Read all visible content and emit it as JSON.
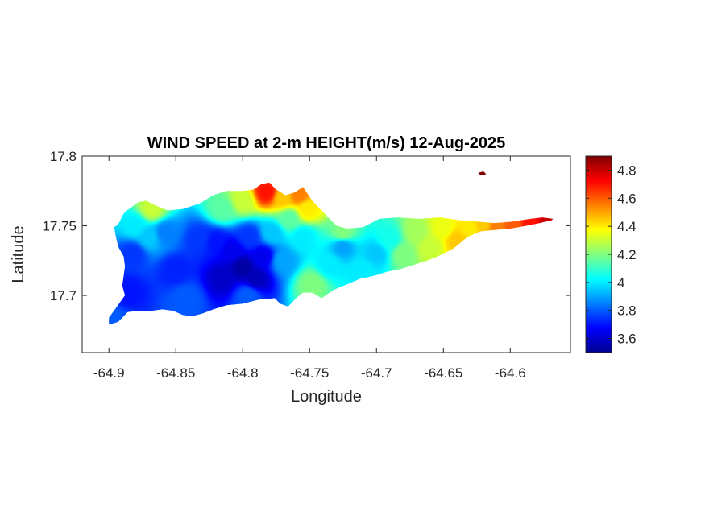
{
  "chart_data": {
    "type": "heatmap",
    "title": "WIND SPEED at 2-m HEIGHT(m/s) 12-Aug-2025",
    "xlabel": "Longitude",
    "ylabel": "Latitude",
    "xlim": [
      -64.92,
      -64.555
    ],
    "ylim": [
      17.659,
      17.8
    ],
    "x_ticks": [
      {
        "value": -64.9,
        "label": "-64.9"
      },
      {
        "value": -64.85,
        "label": "-64.85"
      },
      {
        "value": -64.8,
        "label": "-64.8"
      },
      {
        "value": -64.75,
        "label": "-64.75"
      },
      {
        "value": -64.7,
        "label": "-64.7"
      },
      {
        "value": -64.65,
        "label": "-64.65"
      },
      {
        "value": -64.6,
        "label": "-64.6"
      }
    ],
    "y_ticks": [
      {
        "value": 17.7,
        "label": "17.7"
      },
      {
        "value": 17.75,
        "label": "17.75"
      },
      {
        "value": 17.8,
        "label": "17.8"
      }
    ],
    "colorbar": {
      "colormap": "jet",
      "range": [
        3.5,
        4.9
      ],
      "ticks": [
        {
          "value": 3.6,
          "label": "3.6"
        },
        {
          "value": 3.8,
          "label": "3.8"
        },
        {
          "value": 4.0,
          "label": "4"
        },
        {
          "value": 4.2,
          "label": "4.2"
        },
        {
          "value": 4.4,
          "label": "4.4"
        },
        {
          "value": 4.6,
          "label": "4.6"
        },
        {
          "value": 4.8,
          "label": "4.8"
        }
      ]
    },
    "island_outline": [
      [
        -64.9,
        17.679
      ],
      [
        -64.893,
        17.681
      ],
      [
        -64.886,
        17.688
      ],
      [
        -64.878,
        17.689
      ],
      [
        -64.868,
        17.689
      ],
      [
        -64.86,
        17.69
      ],
      [
        -64.852,
        17.689
      ],
      [
        -64.845,
        17.686
      ],
      [
        -64.838,
        17.685
      ],
      [
        -64.83,
        17.687
      ],
      [
        -64.822,
        17.69
      ],
      [
        -64.812,
        17.693
      ],
      [
        -64.8,
        17.694
      ],
      [
        -64.788,
        17.697
      ],
      [
        -64.776,
        17.698
      ],
      [
        -64.772,
        17.694
      ],
      [
        -64.766,
        17.692
      ],
      [
        -64.76,
        17.698
      ],
      [
        -64.755,
        17.702
      ],
      [
        -64.748,
        17.702
      ],
      [
        -64.741,
        17.698
      ],
      [
        -64.732,
        17.704
      ],
      [
        -64.722,
        17.708
      ],
      [
        -64.712,
        17.712
      ],
      [
        -64.702,
        17.714
      ],
      [
        -64.692,
        17.717
      ],
      [
        -64.682,
        17.719
      ],
      [
        -64.672,
        17.722
      ],
      [
        -64.662,
        17.725
      ],
      [
        -64.652,
        17.729
      ],
      [
        -64.642,
        17.734
      ],
      [
        -64.632,
        17.742
      ],
      [
        -64.622,
        17.746
      ],
      [
        -64.612,
        17.747
      ],
      [
        -64.6,
        17.748
      ],
      [
        -64.588,
        17.75
      ],
      [
        -64.578,
        17.752
      ],
      [
        -64.569,
        17.754
      ],
      [
        -64.568,
        17.755
      ],
      [
        -64.576,
        17.756
      ],
      [
        -64.585,
        17.755
      ],
      [
        -64.598,
        17.753
      ],
      [
        -64.612,
        17.752
      ],
      [
        -64.625,
        17.753
      ],
      [
        -64.638,
        17.754
      ],
      [
        -64.652,
        17.756
      ],
      [
        -64.668,
        17.755
      ],
      [
        -64.684,
        17.756
      ],
      [
        -64.698,
        17.755
      ],
      [
        -64.71,
        17.749
      ],
      [
        -64.722,
        17.748
      ],
      [
        -64.73,
        17.75
      ],
      [
        -64.74,
        17.76
      ],
      [
        -64.748,
        17.768
      ],
      [
        -64.755,
        17.778
      ],
      [
        -64.761,
        17.774
      ],
      [
        -64.768,
        17.772
      ],
      [
        -64.775,
        17.776
      ],
      [
        -64.78,
        17.781
      ],
      [
        -64.786,
        17.78
      ],
      [
        -64.792,
        17.776
      ],
      [
        -64.8,
        17.775
      ],
      [
        -64.812,
        17.775
      ],
      [
        -64.822,
        17.772
      ],
      [
        -64.832,
        17.766
      ],
      [
        -64.845,
        17.762
      ],
      [
        -64.856,
        17.761
      ],
      [
        -64.864,
        17.764
      ],
      [
        -64.872,
        17.768
      ],
      [
        -64.878,
        17.767
      ],
      [
        -64.885,
        17.762
      ],
      [
        -64.888,
        17.76
      ],
      [
        -64.89,
        17.757
      ],
      [
        -64.893,
        17.751
      ],
      [
        -64.896,
        17.749
      ],
      [
        -64.895,
        17.743
      ],
      [
        -64.893,
        17.735
      ],
      [
        -64.889,
        17.728
      ],
      [
        -64.888,
        17.721
      ],
      [
        -64.889,
        17.714
      ],
      [
        -64.89,
        17.707
      ],
      [
        -64.888,
        17.7
      ],
      [
        -64.894,
        17.692
      ],
      [
        -64.9,
        17.684
      ]
    ],
    "islet_outline": [
      [
        -64.624,
        17.788
      ],
      [
        -64.62,
        17.789
      ],
      [
        -64.618,
        17.787
      ],
      [
        -64.622,
        17.786
      ]
    ],
    "wind_samples": [
      [
        -64.897,
        17.682,
        3.8
      ],
      [
        -64.886,
        17.702,
        3.7
      ],
      [
        -64.882,
        17.73,
        3.75
      ],
      [
        -64.88,
        17.75,
        4.0
      ],
      [
        -64.868,
        17.762,
        4.3
      ],
      [
        -64.87,
        17.742,
        3.95
      ],
      [
        -64.858,
        17.745,
        3.85
      ],
      [
        -64.85,
        17.718,
        3.72
      ],
      [
        -64.842,
        17.698,
        3.8
      ],
      [
        -64.832,
        17.74,
        3.75
      ],
      [
        -64.82,
        17.738,
        3.7
      ],
      [
        -64.815,
        17.712,
        3.6
      ],
      [
        -64.808,
        17.732,
        3.65
      ],
      [
        -64.8,
        17.72,
        3.55
      ],
      [
        -64.79,
        17.712,
        3.58
      ],
      [
        -64.796,
        17.7,
        3.8
      ],
      [
        -64.795,
        17.742,
        3.75
      ],
      [
        -64.785,
        17.728,
        3.65
      ],
      [
        -64.778,
        17.745,
        3.95
      ],
      [
        -64.815,
        17.762,
        4.15
      ],
      [
        -64.8,
        17.768,
        4.3
      ],
      [
        -64.782,
        17.774,
        4.7
      ],
      [
        -64.77,
        17.77,
        4.45
      ],
      [
        -64.765,
        17.755,
        4.15
      ],
      [
        -64.77,
        17.725,
        3.9
      ],
      [
        -64.755,
        17.742,
        4.0
      ],
      [
        -64.752,
        17.762,
        4.4
      ],
      [
        -64.758,
        17.772,
        4.55
      ],
      [
        -64.748,
        17.708,
        4.2
      ],
      [
        -64.735,
        17.722,
        4.0
      ],
      [
        -64.725,
        17.735,
        3.9
      ],
      [
        -64.725,
        17.745,
        4.2
      ],
      [
        -64.71,
        17.718,
        4.0
      ],
      [
        -64.7,
        17.73,
        3.95
      ],
      [
        -64.69,
        17.74,
        4.05
      ],
      [
        -64.68,
        17.73,
        4.2
      ],
      [
        -64.67,
        17.745,
        4.25
      ],
      [
        -64.66,
        17.735,
        4.3
      ],
      [
        -64.65,
        17.748,
        4.35
      ],
      [
        -64.64,
        17.74,
        4.45
      ],
      [
        -64.63,
        17.748,
        4.4
      ],
      [
        -64.62,
        17.751,
        4.45
      ],
      [
        -64.61,
        17.75,
        4.55
      ],
      [
        -64.598,
        17.751,
        4.6
      ],
      [
        -64.585,
        17.753,
        4.7
      ],
      [
        -64.572,
        17.754,
        4.8
      ],
      [
        -64.621,
        17.788,
        4.9
      ]
    ]
  }
}
